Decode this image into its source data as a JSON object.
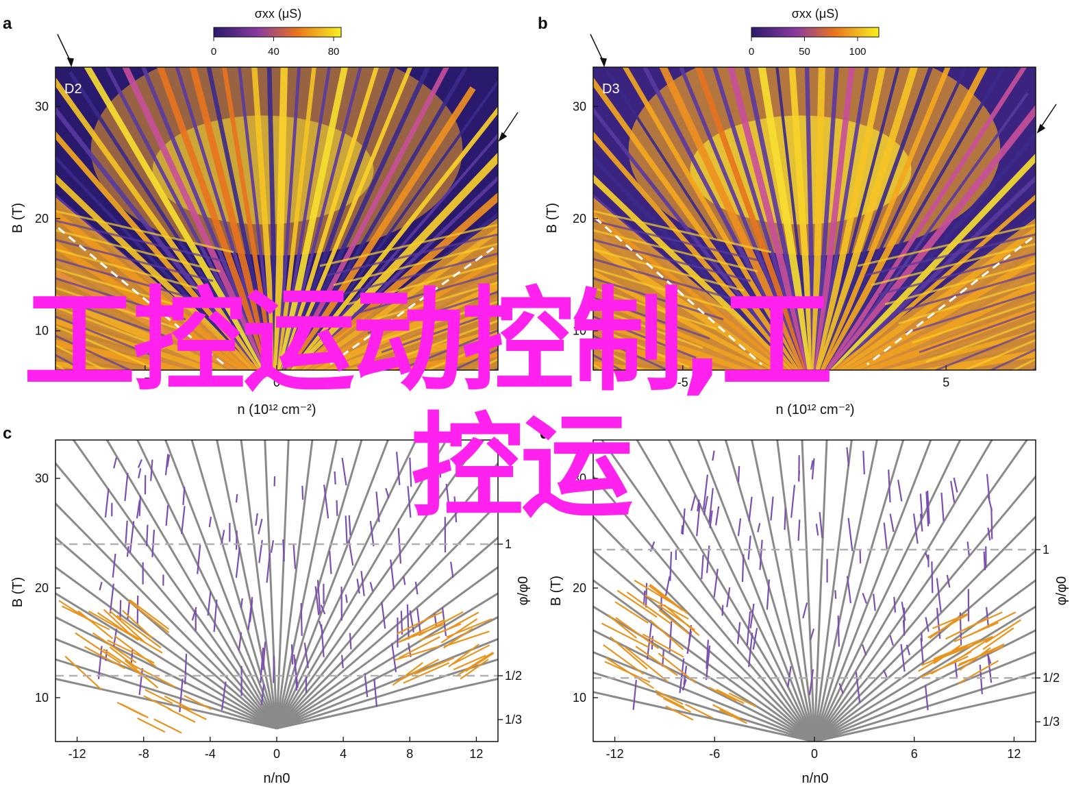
{
  "panels": {
    "a": {
      "letter": "a",
      "label": "D2",
      "type": "heatmap",
      "colorbar": {
        "title": "σxx (μS)",
        "ticks": [
          "0",
          "40",
          "80"
        ],
        "range": [
          0,
          85
        ]
      },
      "x": {
        "label": "n (10¹² cm⁻²)",
        "ticks": [
          "-5",
          "0"
        ]
      },
      "y": {
        "label": "B (T)",
        "ticks": [
          "10",
          "20",
          "30"
        ],
        "range": [
          6.5,
          33.5
        ]
      }
    },
    "b": {
      "letter": "b",
      "label": "D3",
      "type": "heatmap",
      "colorbar": {
        "title": "σxx (μS)",
        "ticks": [
          "0",
          "50",
          "100"
        ],
        "range": [
          0,
          120
        ]
      },
      "x": {
        "label": "n (10¹² cm⁻²)",
        "ticks": [
          "-5",
          "5"
        ]
      },
      "y": {
        "label": "B (T)",
        "ticks": [
          "10",
          "20",
          "30"
        ],
        "range": [
          6.5,
          33.5
        ]
      }
    },
    "c": {
      "letter": "c",
      "x": {
        "label": "n/n0",
        "ticks": [
          "-12",
          "-8",
          "-4",
          "0",
          "4",
          "8",
          "12"
        ],
        "range": [
          -13.3,
          13.3
        ]
      },
      "y": {
        "label": "B (T)",
        "ticks": [
          "10",
          "20",
          "30"
        ],
        "range": [
          6.0,
          33.5
        ]
      },
      "right_axis": {
        "label": "φ/φ0",
        "ticks": [
          "1",
          "1/2",
          "1/3"
        ]
      }
    },
    "d": {
      "letter": "d",
      "x": {
        "label": "n/n0",
        "ticks": [
          "-12",
          "-6",
          "0",
          "6",
          "12"
        ],
        "range": [
          -13.3,
          13.3
        ]
      },
      "y": {
        "label": "B (T)",
        "ticks": [
          "10",
          "20",
          "30"
        ],
        "range": [
          6.0,
          33.5
        ]
      },
      "right_axis": {
        "label": "φ/φ0",
        "ticks": [
          "1",
          "1/2",
          "1/3"
        ]
      }
    }
  },
  "chart_data": [
    {
      "type": "heatmap",
      "panel": "a",
      "title": "D2",
      "ylabel": "B (T)",
      "xlabel": "n (10¹² cm⁻²)",
      "ylim": [
        6.5,
        33.5
      ],
      "colorbar_label": "σxx (μS)",
      "colorbar_range": [
        0,
        85
      ],
      "dashed_boundaries": [
        {
          "from": [
            -9.5,
            21.5
          ],
          "to": [
            -2.0,
            7.0
          ]
        },
        {
          "from": [
            9.5,
            19.5
          ],
          "to": [
            2.0,
            7.0
          ]
        }
      ]
    },
    {
      "type": "heatmap",
      "panel": "b",
      "title": "D3",
      "ylabel": "B (T)",
      "xlabel": "n (10¹² cm⁻²)",
      "ylim": [
        6.5,
        33.5
      ],
      "colorbar_label": "σxx (μS)",
      "colorbar_range": [
        0,
        120
      ],
      "dashed_boundaries": [
        {
          "from": [
            -9.5,
            22.5
          ],
          "to": [
            -2.0,
            7.0
          ]
        },
        {
          "from": [
            9.5,
            20.5
          ],
          "to": [
            2.0,
            7.0
          ]
        }
      ]
    },
    {
      "type": "line",
      "panel": "c",
      "xlabel": "n/n0",
      "ylabel": "B (T)",
      "xlim": [
        -13.3,
        13.3
      ],
      "ylim": [
        6.0,
        33.5
      ],
      "flux_lines": [
        {
          "label": "1",
          "B": 24.0
        },
        {
          "label": "1/2",
          "B": 12.0
        }
      ],
      "right_ticks": [
        {
          "label": "1",
          "B": 24.0
        },
        {
          "label": "1/2",
          "B": 12.0
        },
        {
          "label": "1/3",
          "B": 8.0
        }
      ],
      "fan_origin_B": 7.2
    },
    {
      "type": "line",
      "panel": "d",
      "xlabel": "n/n0",
      "ylabel": "B (T)",
      "xlim": [
        -13.3,
        13.3
      ],
      "ylim": [
        6.0,
        33.5
      ],
      "flux_lines": [
        {
          "label": "1",
          "B": 23.5
        },
        {
          "label": "1/2",
          "B": 11.8
        }
      ],
      "right_ticks": [
        {
          "label": "1",
          "B": 23.5
        },
        {
          "label": "1/2",
          "B": 11.8
        },
        {
          "label": "1/3",
          "B": 7.8
        }
      ],
      "fan_origin_B": 6.0
    }
  ],
  "colors": {
    "heat_low": "#2a1a6e",
    "heat_mid": "#8a3aa0",
    "heat_high": "#f5d020",
    "fan_gray": "#8a8a8a",
    "fan_purple": "#7a4fb0",
    "fan_orange": "#e8941e",
    "fan_brown": "#a04c1c",
    "overlay": "#ff22ee"
  },
  "overlay": {
    "line1": "工控运动控制,工",
    "line2": "控运"
  }
}
